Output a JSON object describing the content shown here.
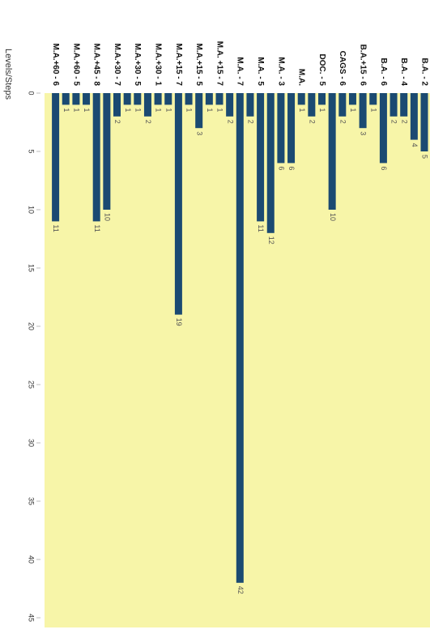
{
  "chart_data": {
    "type": "bar",
    "orientation": "vertical-down",
    "y_label": "Levels/Steps",
    "categories": [
      "B.A. - 2",
      null,
      "B.A. - 4",
      null,
      "B.A. - 6",
      null,
      "B.A.+15 - 6",
      null,
      "CAGS - 6",
      null,
      "DOC. - 5",
      null,
      "M.A.",
      null,
      "M.A. - 3",
      null,
      "M.A. - 5",
      null,
      "M.A. - 7",
      null,
      "M.A. +15 - 7",
      null,
      "M.A.+15 - 5",
      null,
      "M.A.+15 - 7",
      null,
      "M.A.+30 - 1",
      null,
      "M.A.+30 - 5",
      null,
      "M.A.+30 - 7",
      null,
      "M.A.+45 - 8",
      null,
      "M.A.+60 - 5",
      null,
      "M.A.+60 - 6"
    ],
    "values": [
      5,
      4,
      2,
      2,
      6,
      1,
      3,
      1,
      2,
      10,
      1,
      2,
      1,
      6,
      6,
      12,
      11,
      2,
      42,
      2,
      1,
      1,
      3,
      1,
      19,
      1,
      1,
      2,
      1,
      1,
      2,
      10,
      11,
      1,
      1,
      1,
      11
    ],
    "color": "#1b4a72",
    "background": "#f7f5a8",
    "ylim": [
      0,
      45
    ],
    "yticks": [
      0,
      5,
      10,
      15,
      20,
      25,
      30,
      35,
      40,
      45
    ],
    "grid": false
  }
}
